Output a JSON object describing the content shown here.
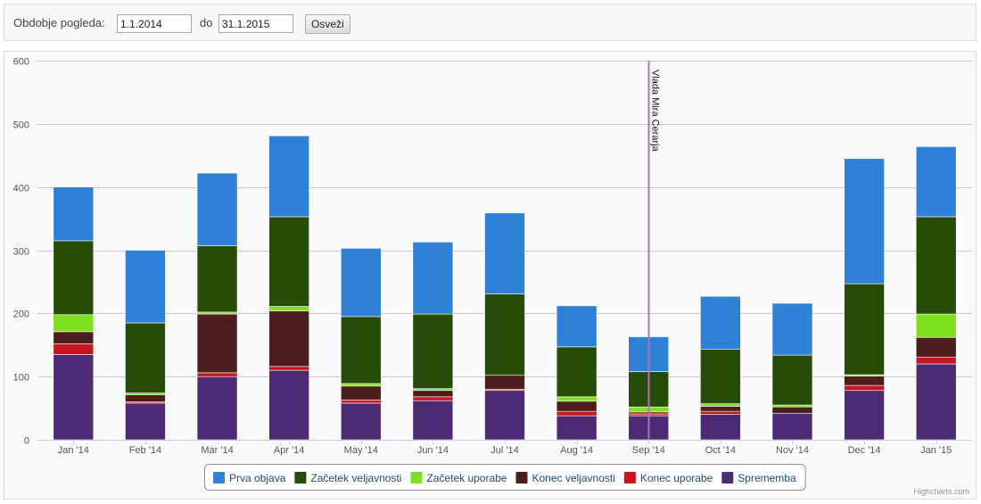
{
  "filter": {
    "period_label": "Obdobje pogleda:",
    "from_value": "1.1.2014",
    "to_label": "do",
    "to_value": "31.1.2015",
    "refresh_label": "Osveži"
  },
  "credits": "Highcharts.com",
  "chart_data": {
    "type": "bar",
    "stacked": true,
    "categories": [
      "Jan '14",
      "Feb '14",
      "Mar '14",
      "Apr '14",
      "May '14",
      "Jun '14",
      "Jul '14",
      "Aug '14",
      "Sep '14",
      "Oct '14",
      "Nov '14",
      "Dec '14",
      "Jan '15"
    ],
    "ylim": [
      0,
      600
    ],
    "yticks": [
      0,
      100,
      200,
      300,
      400,
      500,
      600
    ],
    "grid": true,
    "legend_position": "bottom-center",
    "series": [
      {
        "name": "Sprememba",
        "color": "#4d2a74",
        "values": [
          135,
          58,
          100,
          110,
          58,
          62,
          78,
          38,
          38,
          40,
          42,
          78,
          120
        ]
      },
      {
        "name": "Konec uporabe",
        "color": "#c8151e",
        "values": [
          17,
          2,
          6,
          6,
          5,
          6,
          2,
          7,
          3,
          5,
          0,
          8,
          11
        ]
      },
      {
        "name": "Konec veljavnosti",
        "color": "#4c1d1b",
        "values": [
          19,
          11,
          93,
          88,
          22,
          10,
          22,
          16,
          3,
          8,
          10,
          15,
          31
        ]
      },
      {
        "name": "Začetek uporabe",
        "color": "#7ee01e",
        "values": [
          27,
          3,
          3,
          7,
          4,
          3,
          0,
          7,
          8,
          4,
          3,
          2,
          37
        ]
      },
      {
        "name": "Začetek veljavnosti",
        "color": "#264d07",
        "values": [
          117,
          111,
          105,
          142,
          106,
          118,
          129,
          79,
          56,
          86,
          79,
          144,
          154
        ]
      },
      {
        "name": "Prva objava",
        "color": "#2f80d7",
        "values": [
          85,
          115,
          115,
          128,
          108,
          114,
          128,
          65,
          55,
          84,
          82,
          198,
          111
        ]
      }
    ],
    "legend_order": [
      "Prva objava",
      "Začetek veljavnosti",
      "Začetek uporabe",
      "Konec veljavnosti",
      "Konec uporabe",
      "Sprememba"
    ],
    "plot_line": {
      "label": "Vlada Mira Cerarja",
      "x": 8.5,
      "color": "#b56fc0"
    }
  }
}
